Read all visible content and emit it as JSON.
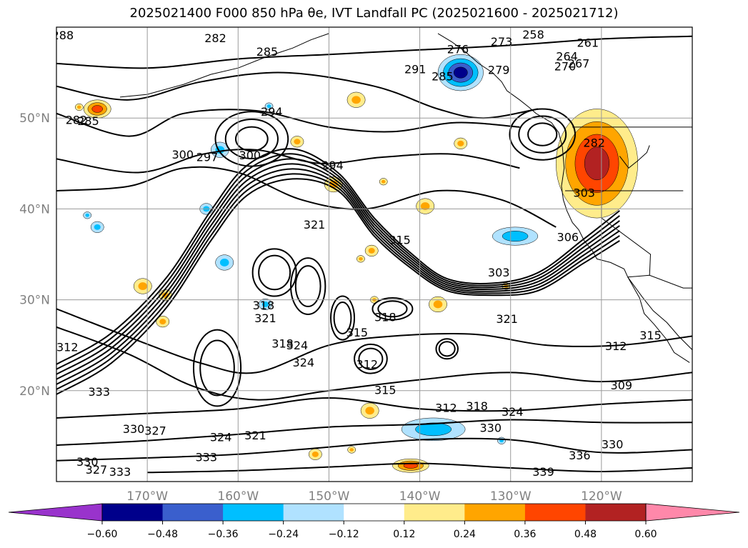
{
  "chart_data": {
    "type": "contour",
    "title": "2025021400 F000 850 hPa θe, IVT Landfall PC (2025021600 - 2025021712)",
    "map": {
      "lon_range": [
        -180,
        -110
      ],
      "lat_range": [
        10,
        60
      ],
      "lon_ticks": [
        {
          "lon": -170,
          "label": "170°W"
        },
        {
          "lon": -160,
          "label": "160°W"
        },
        {
          "lon": -150,
          "label": "150°W"
        },
        {
          "lon": -140,
          "label": "140°W"
        },
        {
          "lon": -130,
          "label": "130°W"
        },
        {
          "lon": -120,
          "label": "120°W"
        }
      ],
      "lat_ticks": [
        {
          "lat": 50,
          "label": "50°N"
        },
        {
          "lat": 40,
          "label": "40°N"
        },
        {
          "lat": 30,
          "label": "30°N"
        },
        {
          "lat": 20,
          "label": "20°N"
        }
      ],
      "grid": true
    },
    "colorbar": {
      "orientation": "horizontal",
      "extend": "both",
      "colors": [
        "#9933cc",
        "#00008b",
        "#3a5fcd",
        "#00bfff",
        "#b0e2ff",
        "#ffffff",
        "#ffec8b",
        "#ffa500",
        "#ff4500",
        "#b22222",
        "#ff88aa"
      ],
      "tick_values": [
        -0.6,
        -0.48,
        -0.36,
        -0.24,
        -0.12,
        0.12,
        0.24,
        0.36,
        0.48,
        0.6
      ],
      "tick_labels": [
        "−0.60",
        "−0.48",
        "−0.36",
        "−0.24",
        "−0.12",
        "0.12",
        "0.24",
        "0.36",
        "0.48",
        "0.60"
      ]
    },
    "contour_labels": [
      {
        "text": "258",
        "lon": -127.5,
        "lat": 59.1
      },
      {
        "text": "261",
        "lon": -121.5,
        "lat": 58.2
      },
      {
        "text": "264",
        "lon": -123.8,
        "lat": 56.7
      },
      {
        "text": "267",
        "lon": -122.5,
        "lat": 55.9
      },
      {
        "text": "270",
        "lon": -124.0,
        "lat": 55.6
      },
      {
        "text": "273",
        "lon": -131.0,
        "lat": 58.3
      },
      {
        "text": "276",
        "lon": -135.8,
        "lat": 57.5
      },
      {
        "text": "279",
        "lon": -131.3,
        "lat": 55.2
      },
      {
        "text": "282",
        "lon": -162.5,
        "lat": 58.7
      },
      {
        "text": "282",
        "lon": -120.8,
        "lat": 47.2
      },
      {
        "text": "282",
        "lon": -177.8,
        "lat": 49.7
      },
      {
        "text": "285",
        "lon": -156.8,
        "lat": 57.2
      },
      {
        "text": "285",
        "lon": -176.5,
        "lat": 49.6
      },
      {
        "text": "285",
        "lon": -137.5,
        "lat": 54.5
      },
      {
        "text": "288",
        "lon": -179.3,
        "lat": 59.0
      },
      {
        "text": "291",
        "lon": -140.5,
        "lat": 55.3
      },
      {
        "text": "294",
        "lon": -156.3,
        "lat": 50.6
      },
      {
        "text": "294",
        "lon": -149.6,
        "lat": 44.7
      },
      {
        "text": "297",
        "lon": -163.4,
        "lat": 45.6
      },
      {
        "text": "300",
        "lon": -166.1,
        "lat": 45.9
      },
      {
        "text": "300",
        "lon": -158.7,
        "lat": 45.8
      },
      {
        "text": "303",
        "lon": -121.9,
        "lat": 41.7
      },
      {
        "text": "303",
        "lon": -131.3,
        "lat": 32.9
      },
      {
        "text": "306",
        "lon": -123.7,
        "lat": 36.8
      },
      {
        "text": "309",
        "lon": -117.8,
        "lat": 20.5
      },
      {
        "text": "312",
        "lon": -178.8,
        "lat": 24.7
      },
      {
        "text": "312",
        "lon": -118.4,
        "lat": 24.8
      },
      {
        "text": "312",
        "lon": -145.8,
        "lat": 22.8
      },
      {
        "text": "312",
        "lon": -137.1,
        "lat": 18.0
      },
      {
        "text": "315",
        "lon": -146.9,
        "lat": 26.3
      },
      {
        "text": "315",
        "lon": -114.6,
        "lat": 26.0
      },
      {
        "text": "315",
        "lon": -143.8,
        "lat": 20.0
      },
      {
        "text": "315",
        "lon": -142.2,
        "lat": 36.5
      },
      {
        "text": "318",
        "lon": -143.8,
        "lat": 28.0
      },
      {
        "text": "318",
        "lon": -157.2,
        "lat": 29.3
      },
      {
        "text": "318",
        "lon": -133.7,
        "lat": 18.2
      },
      {
        "text": "318",
        "lon": -155.1,
        "lat": 25.1
      },
      {
        "text": "321",
        "lon": -130.4,
        "lat": 27.8
      },
      {
        "text": "321",
        "lon": -151.6,
        "lat": 38.2
      },
      {
        "text": "321",
        "lon": -157.0,
        "lat": 27.9
      },
      {
        "text": "321",
        "lon": -158.1,
        "lat": 15.0
      },
      {
        "text": "324",
        "lon": -153.5,
        "lat": 24.9
      },
      {
        "text": "324",
        "lon": -152.8,
        "lat": 23.0
      },
      {
        "text": "324",
        "lon": -161.9,
        "lat": 14.8
      },
      {
        "text": "324",
        "lon": -129.8,
        "lat": 17.6
      },
      {
        "text": "327",
        "lon": -169.1,
        "lat": 15.5
      },
      {
        "text": "327",
        "lon": -175.6,
        "lat": 11.2
      },
      {
        "text": "330",
        "lon": -176.6,
        "lat": 12.1
      },
      {
        "text": "330",
        "lon": -171.5,
        "lat": 15.7
      },
      {
        "text": "330",
        "lon": -132.2,
        "lat": 15.8
      },
      {
        "text": "330",
        "lon": -118.8,
        "lat": 14.0
      },
      {
        "text": "333",
        "lon": -175.3,
        "lat": 19.8
      },
      {
        "text": "333",
        "lon": -163.5,
        "lat": 12.6
      },
      {
        "text": "333",
        "lon": -173.0,
        "lat": 11.0
      },
      {
        "text": "336",
        "lon": -122.4,
        "lat": 12.8
      },
      {
        "text": "339",
        "lon": -126.4,
        "lat": 11.0
      }
    ],
    "shaded_regions": [
      {
        "name": "pacific-northwest-positive",
        "lon_range": [
          -125,
          -116
        ],
        "lat_range": [
          39,
          51
        ],
        "max_class": 0.48
      },
      {
        "name": "gulf-of-alaska-negative",
        "lon_range": [
          -138,
          -133
        ],
        "lat_range": [
          53,
          57
        ],
        "min_class": -0.48
      },
      {
        "name": "offshore-california-negative",
        "lon_range": [
          -132,
          -127
        ],
        "lat_range": [
          36,
          38
        ],
        "min_class": -0.24
      },
      {
        "name": "subtropical-negative",
        "lon_range": [
          -142,
          -135
        ],
        "lat_range": [
          14.5,
          17
        ],
        "min_class": -0.24
      },
      {
        "name": "aleutian-positive",
        "lon_range": [
          -177,
          -174
        ],
        "lat_range": [
          50,
          52
        ],
        "max_class": 0.36
      },
      {
        "name": "southern-positive",
        "lon_range": [
          -143,
          -139
        ],
        "lat_range": [
          11,
          12.5
        ],
        "max_class": 0.36
      }
    ]
  }
}
